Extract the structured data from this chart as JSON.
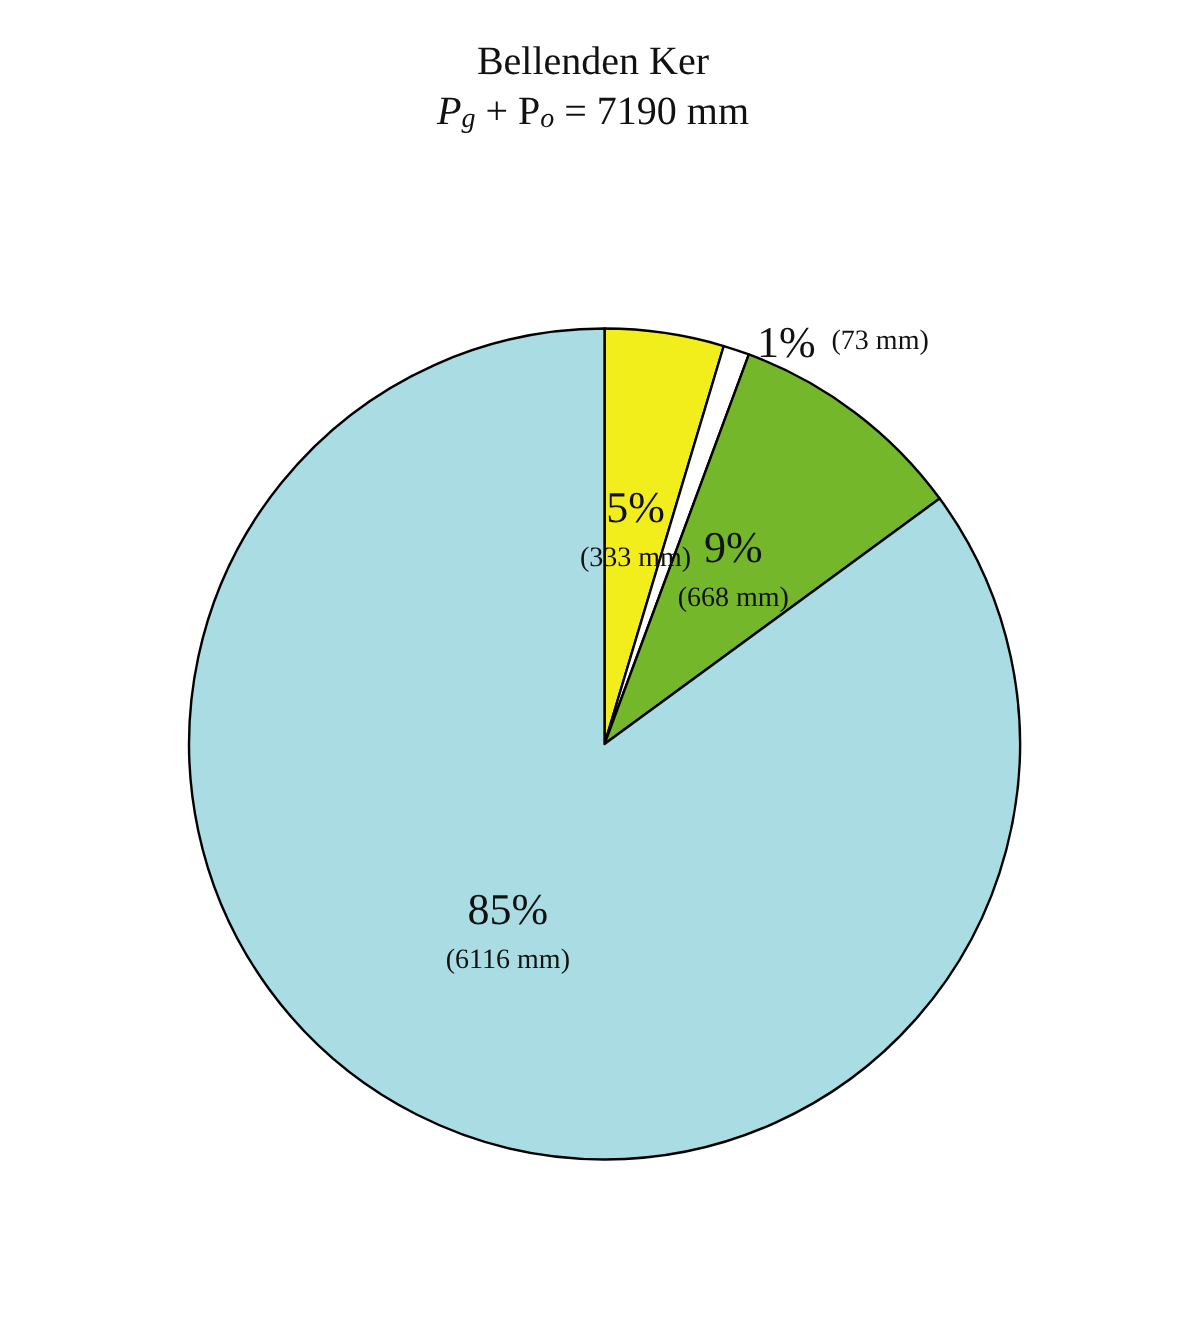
{
  "chart_data": {
    "type": "pie",
    "title": "Bellenden Ker",
    "subtitle": "P$_{g}$ + P$_{o}$ = 7190 mm",
    "categories": [
      null,
      null,
      null,
      null
    ],
    "values": [
      333,
      73,
      668,
      6116
    ],
    "colors": [
      "#f2ee1c",
      "#ffffff",
      "#74b72a",
      "#a9dde3"
    ],
    "value_labels": [
      "5%\n(333 mm)",
      "1% (73 mm)",
      "9%\n(668 mm)",
      "85%\n(6116 mm)"
    ]
  }
}
